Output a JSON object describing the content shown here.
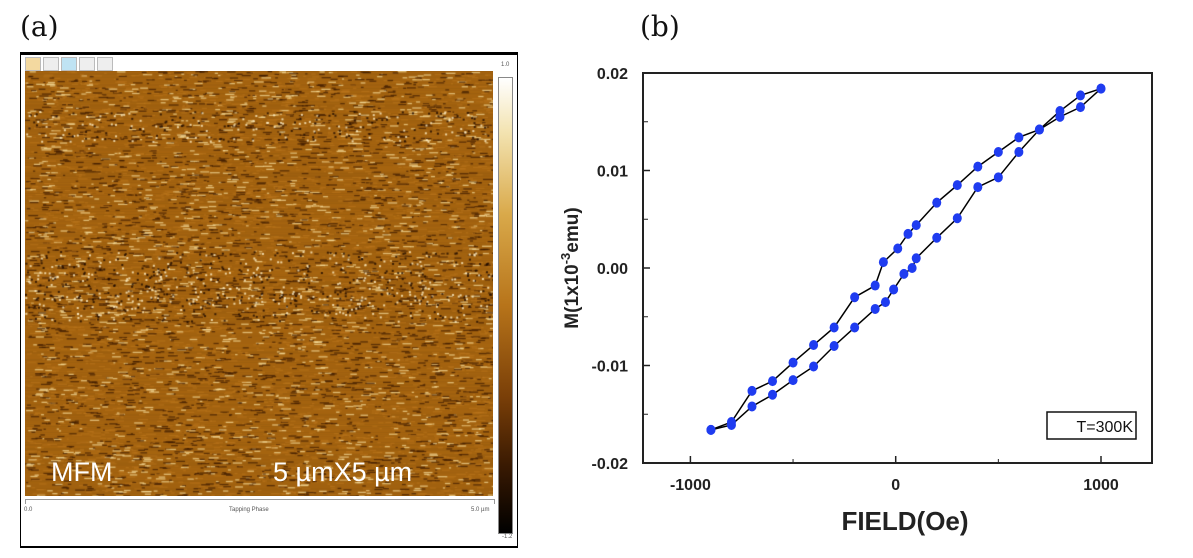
{
  "panel_a": {
    "label": "(a)",
    "overlay_left": "MFM",
    "overlay_right": "5 µmX5 µm",
    "scale_top": "1.0",
    "scale_bottom": "-1.2",
    "axis_start": "0.0",
    "axis_title": "Tapping Phase",
    "axis_end": "5.0 µm",
    "colormap": [
      "#ffffff",
      "#d9a94a",
      "#b7741a",
      "#7a3f08",
      "#000000"
    ]
  },
  "panel_b": {
    "label": "(b)"
  },
  "chart_data": {
    "type": "line",
    "title": "",
    "xlabel": "FIELD(Oe)",
    "ylabel": "M(1x10",
    "ylabel_sup": "-3",
    "ylabel_unit": "emu)",
    "xlim": [
      -1300,
      1300
    ],
    "ylim": [
      -0.02,
      0.02
    ],
    "xticks": [
      -1000,
      0,
      1000
    ],
    "xtick_labels": [
      "-1000",
      "0",
      "1000"
    ],
    "yticks": [
      -0.02,
      -0.01,
      0.0,
      0.01,
      0.02
    ],
    "ytick_labels": [
      "-0.02",
      "-0.01",
      "0.00",
      "0.01",
      "0.02"
    ],
    "grid": false,
    "legend_text": "T=300K",
    "legend_position": "bottom-right",
    "marker_color": "#1f3cf0",
    "line_color": "#000000",
    "series": [
      {
        "x": [
          1000,
          900,
          800,
          700,
          600,
          500,
          400,
          300,
          200,
          100,
          60,
          10,
          -60,
          -100,
          -200,
          -300,
          -400,
          -500,
          -600,
          -700,
          -800,
          -900
        ],
        "y": [
          0.0184,
          0.0177,
          0.0161,
          0.0142,
          0.0134,
          0.0119,
          0.0104,
          0.0085,
          0.0067,
          0.0044,
          0.0035,
          0.002,
          0.0006,
          -0.0018,
          -0.003,
          -0.0061,
          -0.0079,
          -0.0097,
          -0.0116,
          -0.0126,
          -0.0158,
          -0.0166
        ]
      },
      {
        "x": [
          -900,
          -800,
          -700,
          -600,
          -500,
          -400,
          -300,
          -200,
          -100,
          -50,
          -10,
          40,
          80,
          100,
          200,
          300,
          400,
          500,
          600,
          700,
          800,
          900,
          1000
        ],
        "y": [
          -0.0166,
          -0.0161,
          -0.0142,
          -0.013,
          -0.0115,
          -0.0101,
          -0.008,
          -0.0061,
          -0.0042,
          -0.0035,
          -0.0022,
          -0.0006,
          0.0,
          0.001,
          0.0031,
          0.0051,
          0.0083,
          0.0093,
          0.0119,
          0.0142,
          0.0155,
          0.0165,
          0.0184
        ]
      }
    ]
  }
}
